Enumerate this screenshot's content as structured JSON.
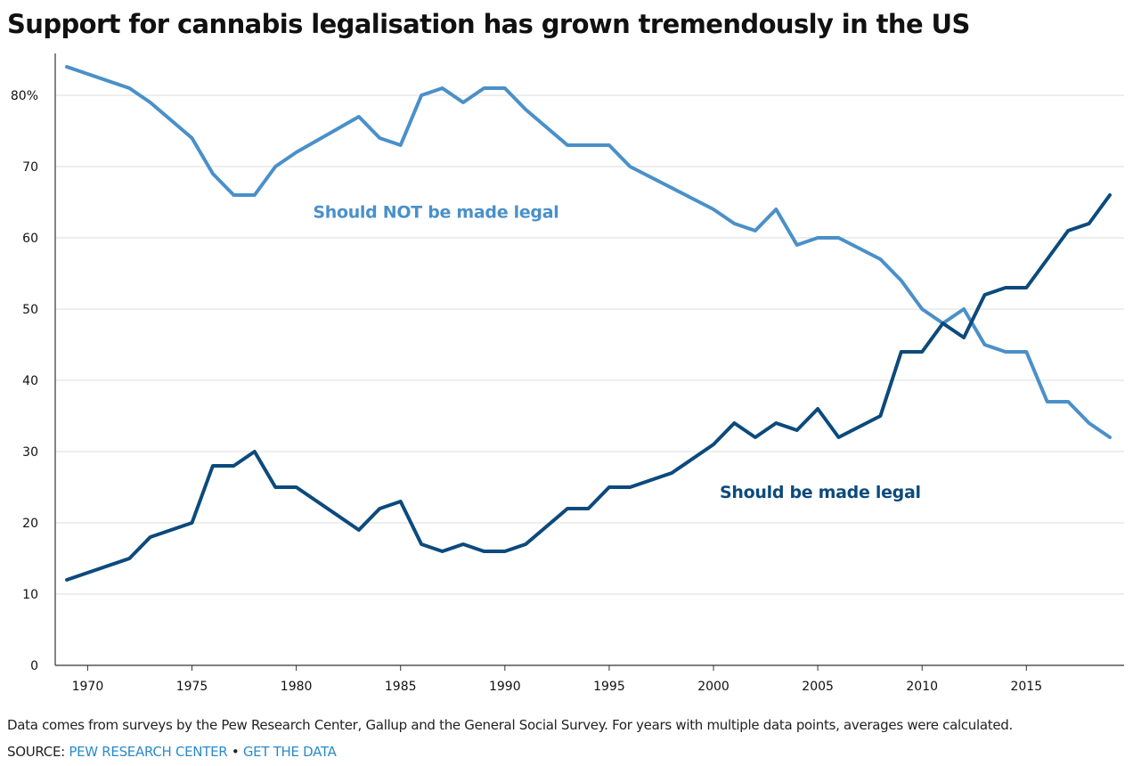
{
  "page": {
    "title": "Support for cannabis legalisation has grown tremendously in the US",
    "note": "Data comes from surveys by the Pew Research Center, Gallup and the General Social Survey. For years with multiple data points, averages were calculated.",
    "source_prefix": "SOURCE: ",
    "source_link": "PEW RESEARCH CENTER",
    "source_separator": " • ",
    "data_link": "GET THE DATA"
  },
  "chart_data": {
    "type": "line",
    "title": "Support for cannabis legalisation has grown tremendously in the US",
    "xlabel": "",
    "ylabel": "",
    "xlim": [
      1969,
      2019
    ],
    "ylim": [
      0,
      85
    ],
    "x_ticks": [
      1970,
      1975,
      1980,
      1985,
      1990,
      1995,
      2000,
      2005,
      2010,
      2015
    ],
    "y_ticks": [
      0,
      10,
      20,
      30,
      40,
      50,
      60,
      70,
      80
    ],
    "y_tick_labels": [
      "0",
      "10",
      "20",
      "30",
      "40",
      "50",
      "60",
      "70",
      "80%"
    ],
    "grid": "horizontal",
    "colors": {
      "not_legal": "#4a90c9",
      "legal": "#0c4a7c",
      "grid": "#dddddd",
      "axis": "#333333"
    },
    "series": [
      {
        "id": "not_legal",
        "name": "Should NOT be made legal",
        "color": "#4a90c9",
        "points": [
          [
            1969,
            84
          ],
          [
            1972,
            81
          ],
          [
            1973,
            79
          ],
          [
            1975,
            74
          ],
          [
            1976,
            69
          ],
          [
            1977,
            66
          ],
          [
            1978,
            66
          ],
          [
            1979,
            70
          ],
          [
            1980,
            72
          ],
          [
            1983,
            77
          ],
          [
            1984,
            74
          ],
          [
            1985,
            73
          ],
          [
            1986,
            80
          ],
          [
            1987,
            81
          ],
          [
            1988,
            79
          ],
          [
            1989,
            81
          ],
          [
            1990,
            81
          ],
          [
            1991,
            78
          ],
          [
            1993,
            73
          ],
          [
            1994,
            73
          ],
          [
            1995,
            73
          ],
          [
            1996,
            70
          ],
          [
            2000,
            64
          ],
          [
            2001,
            62
          ],
          [
            2002,
            61
          ],
          [
            2003,
            64
          ],
          [
            2004,
            59
          ],
          [
            2005,
            60
          ],
          [
            2006,
            60
          ],
          [
            2008,
            57
          ],
          [
            2009,
            54
          ],
          [
            2010,
            50
          ],
          [
            2011,
            48
          ],
          [
            2012,
            50
          ],
          [
            2013,
            45
          ],
          [
            2014,
            44
          ],
          [
            2015,
            44
          ],
          [
            2016,
            37
          ],
          [
            2017,
            37
          ],
          [
            2018,
            34
          ],
          [
            2019,
            32
          ]
        ]
      },
      {
        "id": "legal",
        "name": "Should be made legal",
        "color": "#0c4a7c",
        "points": [
          [
            1969,
            12
          ],
          [
            1972,
            15
          ],
          [
            1973,
            18
          ],
          [
            1975,
            20
          ],
          [
            1976,
            28
          ],
          [
            1977,
            28
          ],
          [
            1978,
            30
          ],
          [
            1979,
            25
          ],
          [
            1980,
            25
          ],
          [
            1983,
            19
          ],
          [
            1984,
            22
          ],
          [
            1985,
            23
          ],
          [
            1986,
            17
          ],
          [
            1987,
            16
          ],
          [
            1988,
            17
          ],
          [
            1989,
            16
          ],
          [
            1990,
            16
          ],
          [
            1991,
            17
          ],
          [
            1993,
            22
          ],
          [
            1994,
            22
          ],
          [
            1995,
            25
          ],
          [
            1996,
            25
          ],
          [
            1998,
            27
          ],
          [
            2000,
            31
          ],
          [
            2001,
            34
          ],
          [
            2002,
            32
          ],
          [
            2003,
            34
          ],
          [
            2004,
            33
          ],
          [
            2005,
            36
          ],
          [
            2006,
            32
          ],
          [
            2008,
            35
          ],
          [
            2009,
            44
          ],
          [
            2010,
            44
          ],
          [
            2011,
            48
          ],
          [
            2012,
            46
          ],
          [
            2013,
            52
          ],
          [
            2014,
            53
          ],
          [
            2015,
            53
          ],
          [
            2017,
            61
          ],
          [
            2018,
            62
          ],
          [
            2019,
            66
          ]
        ]
      }
    ],
    "annotations": [
      {
        "series": "not_legal",
        "text": "Should NOT be made legal",
        "x": 1980.8,
        "y": 62.8
      },
      {
        "series": "legal",
        "text": "Should be made legal",
        "x": 2000.3,
        "y": 23.5
      }
    ]
  }
}
